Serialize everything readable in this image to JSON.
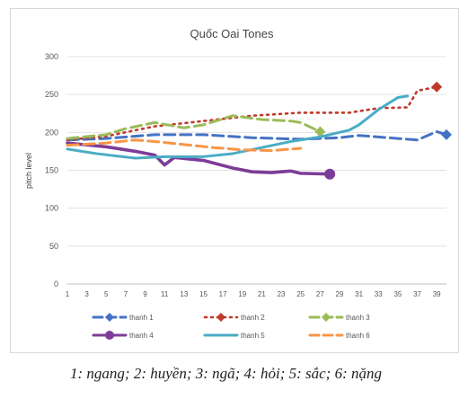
{
  "chart_data": {
    "type": "line",
    "title": "Quốc Oai Tones",
    "xlabel": "",
    "ylabel": "pitch level",
    "ylim": [
      0,
      300
    ],
    "yticks": [
      0,
      50,
      100,
      150,
      200,
      250,
      300
    ],
    "xlim": [
      1,
      40
    ],
    "xticks": [
      1,
      3,
      5,
      7,
      9,
      11,
      13,
      15,
      17,
      19,
      21,
      23,
      25,
      27,
      29,
      31,
      33,
      35,
      37,
      39
    ],
    "grid": "horizontal",
    "legend_position": "bottom",
    "series": [
      {
        "name": "thanh 1",
        "color": "#4472c4",
        "style": "long-dash",
        "marker": "diamond",
        "points": [
          [
            1,
            190
          ],
          [
            5,
            192
          ],
          [
            10,
            197
          ],
          [
            15,
            197
          ],
          [
            20,
            193
          ],
          [
            25,
            191
          ],
          [
            29,
            193
          ],
          [
            31,
            196
          ],
          [
            35,
            192
          ],
          [
            37,
            190
          ],
          [
            39,
            201
          ],
          [
            40,
            197
          ]
        ]
      },
      {
        "name": "thanh 2",
        "color": "#c0392b",
        "style": "dotted",
        "marker": "diamond",
        "points": [
          [
            1,
            190
          ],
          [
            5,
            195
          ],
          [
            10,
            208
          ],
          [
            15,
            215
          ],
          [
            20,
            222
          ],
          [
            25,
            226
          ],
          [
            30,
            226
          ],
          [
            33,
            232
          ],
          [
            36,
            233
          ],
          [
            37,
            255
          ],
          [
            39,
            260
          ]
        ]
      },
      {
        "name": "thanh 3",
        "color": "#9bbb59",
        "style": "long-dash",
        "marker": "diamond",
        "points": [
          [
            1,
            192
          ],
          [
            5,
            197
          ],
          [
            7,
            205
          ],
          [
            10,
            213
          ],
          [
            13,
            206
          ],
          [
            15,
            210
          ],
          [
            18,
            222
          ],
          [
            21,
            217
          ],
          [
            24,
            215
          ],
          [
            25,
            213
          ],
          [
            27,
            201
          ]
        ]
      },
      {
        "name": "thanh 4",
        "color": "#7d3c98",
        "style": "solid",
        "marker": "circle",
        "points": [
          [
            1,
            186
          ],
          [
            5,
            181
          ],
          [
            8,
            175
          ],
          [
            10,
            170
          ],
          [
            11,
            157
          ],
          [
            12,
            167
          ],
          [
            15,
            163
          ],
          [
            18,
            153
          ],
          [
            20,
            148
          ],
          [
            22,
            147
          ],
          [
            24,
            149
          ],
          [
            25,
            146
          ],
          [
            28,
            145
          ]
        ]
      },
      {
        "name": "thanh 5",
        "color": "#4bacc6",
        "style": "solid",
        "marker": "none",
        "points": [
          [
            1,
            178
          ],
          [
            4,
            172
          ],
          [
            8,
            166
          ],
          [
            11,
            168
          ],
          [
            15,
            168
          ],
          [
            18,
            172
          ],
          [
            21,
            180
          ],
          [
            24,
            188
          ],
          [
            27,
            194
          ],
          [
            30,
            203
          ],
          [
            31,
            210
          ],
          [
            33,
            230
          ],
          [
            35,
            246
          ],
          [
            36,
            248
          ]
        ]
      },
      {
        "name": "thanh 6",
        "color": "#f79646",
        "style": "long-dash",
        "marker": "none",
        "points": [
          [
            1,
            183
          ],
          [
            5,
            186
          ],
          [
            8,
            190
          ],
          [
            10,
            188
          ],
          [
            13,
            184
          ],
          [
            16,
            180
          ],
          [
            19,
            177
          ],
          [
            22,
            176
          ],
          [
            25,
            179
          ]
        ]
      }
    ]
  },
  "caption": "1: ngang; 2: huyền; 3: ngã; 4: hỏi; 5: sắc; 6: nặng"
}
